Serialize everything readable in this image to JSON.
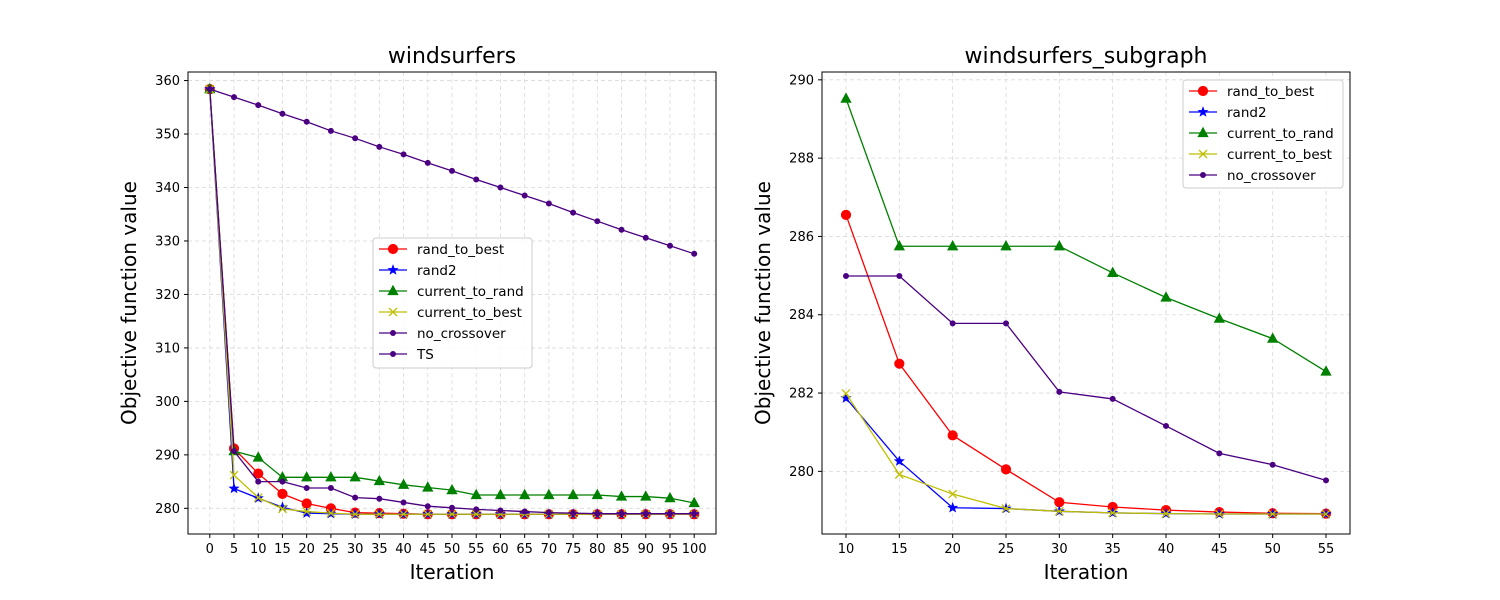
{
  "chart_data": [
    {
      "type": "line",
      "title": "windsurfers",
      "xlabel": "Iteration",
      "ylabel": "Objective function value",
      "xlim": [
        -4.5,
        104.5
      ],
      "ylim": [
        275.2,
        361.6
      ],
      "xticks": [
        0,
        5,
        10,
        15,
        20,
        25,
        30,
        35,
        40,
        45,
        50,
        55,
        60,
        65,
        70,
        75,
        80,
        85,
        90,
        95,
        100
      ],
      "yticks": [
        280,
        290,
        300,
        310,
        320,
        330,
        340,
        350,
        360
      ],
      "grid": true,
      "legend_position": "center-right",
      "x": [
        0,
        5,
        10,
        15,
        20,
        25,
        30,
        35,
        40,
        45,
        50,
        55,
        60,
        65,
        70,
        75,
        80,
        85,
        90,
        95,
        100
      ],
      "series": [
        {
          "name": "rand_to_best",
          "color": "#ff0000",
          "marker": "circle",
          "values": [
            358.4,
            291.2,
            286.5,
            282.7,
            280.9,
            280.0,
            279.2,
            279.1,
            279.0,
            278.9,
            278.9,
            278.9,
            278.9,
            278.9,
            278.9,
            278.9,
            278.9,
            278.9,
            278.9,
            278.9,
            278.9
          ]
        },
        {
          "name": "rand2",
          "color": "#0000ff",
          "marker": "star",
          "values": [
            358.4,
            283.7,
            281.9,
            280.2,
            279.1,
            279.0,
            278.9,
            278.9,
            278.9,
            278.9,
            278.9,
            278.9,
            278.9,
            278.9,
            278.9,
            278.9,
            278.9,
            278.9,
            278.9,
            278.9,
            278.9
          ]
        },
        {
          "name": "current_to_rand",
          "color": "#008000",
          "marker": "triangle",
          "values": [
            358.4,
            290.7,
            289.5,
            285.8,
            285.8,
            285.8,
            285.8,
            285.1,
            284.4,
            283.9,
            283.4,
            282.5,
            282.5,
            282.5,
            282.5,
            282.5,
            282.5,
            282.2,
            282.2,
            281.9,
            281.0
          ]
        },
        {
          "name": "current_to_best",
          "color": "#bfbf00",
          "marker": "x",
          "values": [
            358.4,
            286.2,
            282.0,
            279.9,
            279.4,
            279.1,
            278.9,
            278.9,
            278.9,
            278.9,
            278.9,
            278.9,
            278.9,
            278.9,
            278.9,
            278.9,
            278.9,
            278.9,
            278.9,
            278.9,
            278.9
          ]
        },
        {
          "name": "no_crossover",
          "color": "#4b0082",
          "marker": "dot",
          "values": [
            358.4,
            290.7,
            285.0,
            285.0,
            283.8,
            283.8,
            282.0,
            281.8,
            281.1,
            280.4,
            280.1,
            279.8,
            279.6,
            279.4,
            279.2,
            279.1,
            279.0,
            279.0,
            279.0,
            279.0,
            279.0
          ]
        },
        {
          "name": "TS",
          "color": "#4b0082",
          "marker": "dot",
          "values": [
            358.4,
            356.9,
            355.4,
            353.8,
            352.3,
            350.6,
            349.2,
            347.6,
            346.2,
            344.6,
            343.1,
            341.5,
            340.0,
            338.5,
            337.0,
            335.3,
            333.7,
            332.1,
            330.6,
            329.1,
            327.6
          ]
        }
      ]
    },
    {
      "type": "line",
      "title": "windsurfers_subgraph",
      "xlabel": "Iteration",
      "ylabel": "Objective function value",
      "xlim": [
        7.75,
        57.25
      ],
      "ylim": [
        278.4,
        290.2
      ],
      "xticks": [
        10,
        15,
        20,
        25,
        30,
        35,
        40,
        45,
        50,
        55
      ],
      "yticks": [
        280,
        282,
        284,
        286,
        288,
        290
      ],
      "grid": true,
      "legend_position": "top-right",
      "x": [
        10,
        15,
        20,
        25,
        30,
        35,
        40,
        45,
        50,
        55
      ],
      "series": [
        {
          "name": "rand_to_best",
          "color": "#ff0000",
          "marker": "circle",
          "values": [
            286.55,
            282.75,
            280.92,
            280.05,
            279.21,
            279.09,
            279.01,
            278.96,
            278.93,
            278.92
          ]
        },
        {
          "name": "rand2",
          "color": "#0000ff",
          "marker": "star",
          "values": [
            281.87,
            280.26,
            279.07,
            279.05,
            278.98,
            278.94,
            278.92,
            278.91,
            278.91,
            278.91
          ]
        },
        {
          "name": "current_to_rand",
          "color": "#008000",
          "marker": "triangle",
          "values": [
            289.52,
            285.75,
            285.75,
            285.75,
            285.75,
            285.07,
            284.44,
            283.9,
            283.39,
            282.55
          ]
        },
        {
          "name": "current_to_best",
          "color": "#bfbf00",
          "marker": "x",
          "values": [
            281.99,
            279.92,
            279.42,
            279.05,
            278.98,
            278.94,
            278.92,
            278.91,
            278.91,
            278.91
          ]
        },
        {
          "name": "no_crossover",
          "color": "#4b0082",
          "marker": "dot",
          "values": [
            284.99,
            284.99,
            283.78,
            283.78,
            282.03,
            281.85,
            281.16,
            280.46,
            280.17,
            279.77
          ]
        }
      ]
    }
  ]
}
